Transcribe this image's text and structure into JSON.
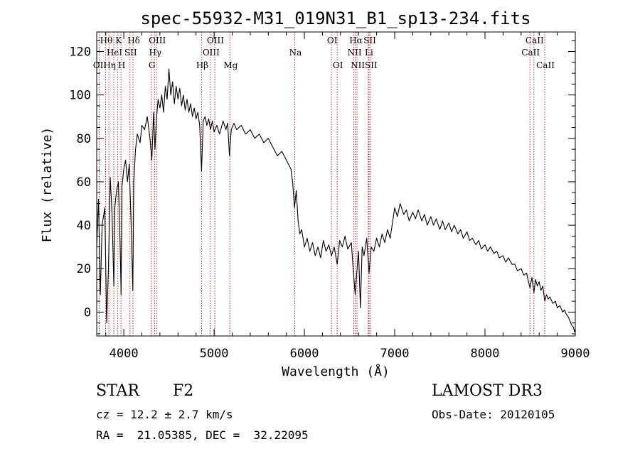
{
  "chart_data": {
    "type": "line",
    "title": "spec-55932-M31_019N31_B1_sp13-234.fits",
    "xlabel": "Wavelength (Å)",
    "ylabel": "Flux (relative)",
    "xlim": [
      3700,
      9000
    ],
    "ylim": [
      -11,
      129
    ],
    "xticks": [
      4000,
      5000,
      6000,
      7000,
      8000,
      9000
    ],
    "xtick_labels": [
      "4000",
      "5000",
      "6000",
      "7000",
      "8000",
      "9000"
    ],
    "yticks": [
      0,
      20,
      40,
      60,
      80,
      100,
      120
    ],
    "ytick_labels": [
      "0",
      "20",
      "40",
      "60",
      "80",
      "100",
      "120"
    ],
    "series": [
      {
        "name": "flux",
        "points": [
          [
            3700,
            30
          ],
          [
            3720,
            52
          ],
          [
            3740,
            8
          ],
          [
            3760,
            40
          ],
          [
            3790,
            48
          ],
          [
            3810,
            -5
          ],
          [
            3830,
            20
          ],
          [
            3850,
            62
          ],
          [
            3870,
            45
          ],
          [
            3890,
            12
          ],
          [
            3900,
            48
          ],
          [
            3920,
            56
          ],
          [
            3940,
            60
          ],
          [
            3960,
            30
          ],
          [
            3970,
            8
          ],
          [
            3980,
            58
          ],
          [
            4000,
            66
          ],
          [
            4020,
            70
          ],
          [
            4040,
            60
          ],
          [
            4060,
            68
          ],
          [
            4080,
            42
          ],
          [
            4100,
            10
          ],
          [
            4110,
            60
          ],
          [
            4130,
            75
          ],
          [
            4150,
            82
          ],
          [
            4180,
            78
          ],
          [
            4200,
            86
          ],
          [
            4230,
            84
          ],
          [
            4260,
            90
          ],
          [
            4290,
            80
          ],
          [
            4310,
            70
          ],
          [
            4330,
            92
          ],
          [
            4345,
            75
          ],
          [
            4360,
            88
          ],
          [
            4380,
            98
          ],
          [
            4400,
            94
          ],
          [
            4420,
            100
          ],
          [
            4440,
            92
          ],
          [
            4460,
            104
          ],
          [
            4480,
            98
          ],
          [
            4500,
            112
          ],
          [
            4520,
            100
          ],
          [
            4540,
            106
          ],
          [
            4560,
            96
          ],
          [
            4580,
            104
          ],
          [
            4600,
            98
          ],
          [
            4620,
            103
          ],
          [
            4640,
            95
          ],
          [
            4660,
            100
          ],
          [
            4680,
            93
          ],
          [
            4700,
            98
          ],
          [
            4720,
            92
          ],
          [
            4740,
            96
          ],
          [
            4760,
            90
          ],
          [
            4780,
            94
          ],
          [
            4800,
            89
          ],
          [
            4820,
            92
          ],
          [
            4840,
            86
          ],
          [
            4861,
            65
          ],
          [
            4880,
            88
          ],
          [
            4900,
            90
          ],
          [
            4920,
            86
          ],
          [
            4940,
            89
          ],
          [
            4960,
            84
          ],
          [
            4980,
            88
          ],
          [
            5000,
            83
          ],
          [
            5030,
            86
          ],
          [
            5060,
            82
          ],
          [
            5100,
            88
          ],
          [
            5130,
            84
          ],
          [
            5150,
            87
          ],
          [
            5170,
            72
          ],
          [
            5190,
            84
          ],
          [
            5220,
            87
          ],
          [
            5250,
            84
          ],
          [
            5300,
            86
          ],
          [
            5350,
            82
          ],
          [
            5400,
            84
          ],
          [
            5450,
            80
          ],
          [
            5500,
            82
          ],
          [
            5550,
            78
          ],
          [
            5600,
            80
          ],
          [
            5650,
            76
          ],
          [
            5700,
            72
          ],
          [
            5750,
            74
          ],
          [
            5800,
            70
          ],
          [
            5850,
            66
          ],
          [
            5870,
            60
          ],
          [
            5890,
            48
          ],
          [
            5910,
            56
          ],
          [
            5930,
            42
          ],
          [
            5950,
            36
          ],
          [
            5970,
            38
          ],
          [
            6000,
            30
          ],
          [
            6030,
            34
          ],
          [
            6060,
            28
          ],
          [
            6090,
            32
          ],
          [
            6120,
            26
          ],
          [
            6150,
            30
          ],
          [
            6180,
            25
          ],
          [
            6210,
            33
          ],
          [
            6240,
            28
          ],
          [
            6270,
            31
          ],
          [
            6300,
            26
          ],
          [
            6330,
            30
          ],
          [
            6363,
            22
          ],
          [
            6390,
            33
          ],
          [
            6420,
            30
          ],
          [
            6450,
            35
          ],
          [
            6480,
            29
          ],
          [
            6520,
            32
          ],
          [
            6540,
            20
          ],
          [
            6563,
            8
          ],
          [
            6580,
            18
          ],
          [
            6600,
            28
          ],
          [
            6620,
            2
          ],
          [
            6640,
            30
          ],
          [
            6660,
            26
          ],
          [
            6690,
            34
          ],
          [
            6716,
            18
          ],
          [
            6740,
            30
          ],
          [
            6770,
            28
          ],
          [
            6800,
            34
          ],
          [
            6830,
            30
          ],
          [
            6860,
            36
          ],
          [
            6890,
            32
          ],
          [
            6920,
            38
          ],
          [
            6950,
            34
          ],
          [
            7000,
            48
          ],
          [
            7030,
            44
          ],
          [
            7060,
            50
          ],
          [
            7100,
            45
          ],
          [
            7130,
            47
          ],
          [
            7160,
            42
          ],
          [
            7200,
            46
          ],
          [
            7230,
            43
          ],
          [
            7260,
            47
          ],
          [
            7300,
            42
          ],
          [
            7330,
            45
          ],
          [
            7360,
            40
          ],
          [
            7400,
            44
          ],
          [
            7430,
            40
          ],
          [
            7460,
            43
          ],
          [
            7500,
            38
          ],
          [
            7530,
            42
          ],
          [
            7560,
            38
          ],
          [
            7600,
            41
          ],
          [
            7630,
            37
          ],
          [
            7660,
            40
          ],
          [
            7700,
            36
          ],
          [
            7730,
            38
          ],
          [
            7760,
            34
          ],
          [
            7800,
            37
          ],
          [
            7830,
            33
          ],
          [
            7860,
            34
          ],
          [
            7900,
            31
          ],
          [
            7930,
            33
          ],
          [
            7960,
            29
          ],
          [
            8000,
            31
          ],
          [
            8030,
            28
          ],
          [
            8060,
            30
          ],
          [
            8100,
            27
          ],
          [
            8130,
            28
          ],
          [
            8160,
            25
          ],
          [
            8200,
            26
          ],
          [
            8230,
            23
          ],
          [
            8260,
            25
          ],
          [
            8300,
            22
          ],
          [
            8330,
            22
          ],
          [
            8360,
            19
          ],
          [
            8400,
            20
          ],
          [
            8430,
            17
          ],
          [
            8460,
            18
          ],
          [
            8498,
            11
          ],
          [
            8520,
            16
          ],
          [
            8542,
            9
          ],
          [
            8560,
            15
          ],
          [
            8580,
            12
          ],
          [
            8600,
            14
          ],
          [
            8620,
            10
          ],
          [
            8640,
            12
          ],
          [
            8662,
            5
          ],
          [
            8680,
            8
          ],
          [
            8700,
            6
          ],
          [
            8720,
            7
          ],
          [
            8750,
            4
          ],
          [
            8780,
            5
          ],
          [
            8800,
            2
          ],
          [
            8830,
            3
          ],
          [
            8860,
            0
          ],
          [
            8880,
            1
          ],
          [
            8900,
            -1
          ],
          [
            8920,
            -2
          ],
          [
            8940,
            -4
          ],
          [
            8960,
            -6
          ],
          [
            8980,
            -7
          ],
          [
            8990,
            -9
          ],
          [
            9000,
            -8
          ]
        ]
      }
    ],
    "line_markers": [
      {
        "label": "OII",
        "wavelength": 3727,
        "row": 3
      },
      {
        "label": "Hθ",
        "wavelength": 3798,
        "row": 1
      },
      {
        "label": "Hη",
        "wavelength": 3835,
        "row": 3
      },
      {
        "label": "HeI",
        "wavelength": 3889,
        "row": 2
      },
      {
        "label": "K",
        "wavelength": 3934,
        "row": 1
      },
      {
        "label": "SII",
        "wavelength": 4068,
        "row": 2
      },
      {
        "label": "H",
        "wavelength": 3969,
        "row": 3
      },
      {
        "label": "Hδ",
        "wavelength": 4102,
        "row": 1
      },
      {
        "label": "G",
        "wavelength": 4304,
        "row": 3
      },
      {
        "label": "Hγ",
        "wavelength": 4340,
        "row": 2
      },
      {
        "label": "OIII",
        "wavelength": 4363,
        "row": 1
      },
      {
        "label": "Hβ",
        "wavelength": 4861,
        "row": 3
      },
      {
        "label": "OIII",
        "wavelength": 4959,
        "row": 2
      },
      {
        "label": "OIII",
        "wavelength": 5007,
        "row": 1
      },
      {
        "label": "Mg",
        "wavelength": 5175,
        "row": 3
      },
      {
        "label": "Na",
        "wavelength": 5893,
        "row": 2
      },
      {
        "label": "OI",
        "wavelength": 6300,
        "row": 1
      },
      {
        "label": "OI",
        "wavelength": 6363,
        "row": 3
      },
      {
        "label": "NII",
        "wavelength": 6548,
        "row": 2
      },
      {
        "label": "Hα",
        "wavelength": 6563,
        "row": 1
      },
      {
        "label": "NII",
        "wavelength": 6583,
        "row": 3
      },
      {
        "label": "SII",
        "wavelength": 6716,
        "row": 1
      },
      {
        "label": "Li",
        "wavelength": 6708,
        "row": 2
      },
      {
        "label": "SII",
        "wavelength": 6731,
        "row": 3
      },
      {
        "label": "CaII",
        "wavelength": 8498,
        "row": 2
      },
      {
        "label": "CaII",
        "wavelength": 8542,
        "row": 1
      },
      {
        "label": "CaII",
        "wavelength": 8662,
        "row": 3
      }
    ]
  },
  "footer": {
    "object_class": "STAR",
    "subclass": "F2",
    "survey": "LAMOST DR3",
    "cz": "cz = 12.2 ± 2.7 km/s",
    "obs_date": "Obs-Date: 20120105",
    "coords": "RA =  21.05385, DEC =  32.22095"
  },
  "colors": {
    "spectrum": "#000000",
    "marker_lines": "#cc2222",
    "axes": "#000000"
  }
}
